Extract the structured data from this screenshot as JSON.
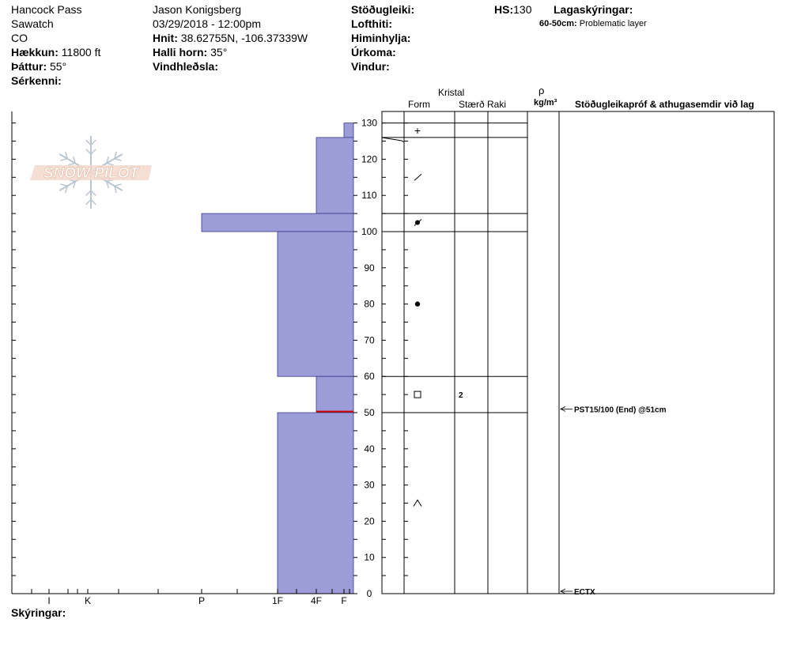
{
  "header": {
    "col1": {
      "location": "Hancock Pass",
      "range": "Sawatch",
      "state": "CO",
      "elevation_label": "Hækkun:",
      "elevation_value": "11800 ft",
      "aspect_label": "Þáttur:",
      "aspect_value": "55°",
      "features_label": "Sérkenni:"
    },
    "col2": {
      "observer": "Jason Konigsberg",
      "datetime": "03/29/2018 - 12:00pm",
      "coords_label": "Hnit:",
      "coords_value": "38.62755N, -106.37339W",
      "slope_label": "Halli horn:",
      "slope_value": "35°",
      "wind_loading_label": "Vindhleðsla:"
    },
    "col3": {
      "stability_label": "Stöðugleiki:",
      "air_temp_label": "Lofthiti:",
      "sky_label": "Himinhylja:",
      "precip_label": "Úrkoma:",
      "wind_label": "Vindur:"
    },
    "col4": {
      "hs_label": "HS:",
      "hs_value": "130",
      "legend_label": "Lagaskýringar:",
      "legend_range": "60-50cm:",
      "legend_text": "Problematic layer"
    }
  },
  "columns": {
    "crystal": "Kristal",
    "form": "Form",
    "size": "Stærð",
    "moisture": "Raki",
    "rho": "ρ",
    "density_unit": "kg/m³",
    "tests": "Stöðugleikapróf & athugasemdir við lag"
  },
  "footer": {
    "comments_label": "Skýringar:"
  },
  "chart_data": {
    "type": "bar",
    "title": "",
    "xlabel": "",
    "ylabel": "",
    "y_ticks": [
      0,
      10,
      20,
      30,
      40,
      50,
      60,
      70,
      80,
      90,
      100,
      110,
      120,
      130
    ],
    "ylim": [
      0,
      132
    ],
    "hardness_scale": [
      "I",
      "K",
      "P",
      "1F",
      "4F",
      "F"
    ],
    "layers": [
      {
        "top": 130,
        "bottom": 126,
        "hardness": "F"
      },
      {
        "top": 126,
        "bottom": 105,
        "hardness": "F-4F"
      },
      {
        "top": 105,
        "bottom": 100,
        "hardness": "P"
      },
      {
        "top": 100,
        "bottom": 60,
        "hardness": "1F"
      },
      {
        "top": 60,
        "bottom": 50,
        "hardness": "4F"
      },
      {
        "top": 50,
        "bottom": 0,
        "hardness": "1F"
      }
    ],
    "layer_boundaries": [
      130,
      126,
      105,
      100,
      60,
      50
    ],
    "problem_layer": {
      "top": 60,
      "bottom": 50,
      "color": "#cc0000"
    },
    "grain_forms": [
      {
        "depth": 128,
        "symbol": "+"
      },
      {
        "depth": 115,
        "symbol": "⁄"
      },
      {
        "depth": 102.5,
        "symbol": "●⁄"
      },
      {
        "depth": 80,
        "symbol": "●"
      },
      {
        "depth": 55,
        "symbol": "□",
        "size": "2"
      },
      {
        "depth": 25,
        "symbol": "^"
      }
    ],
    "stability_tests": [
      {
        "depth": 51,
        "text": "PST15/100 (End) @51cm"
      },
      {
        "depth": 0,
        "text": "ECTX"
      }
    ],
    "colors": {
      "fill": "#9c9cd8",
      "stroke": "#3a3a8c",
      "problem": "#cc0000"
    },
    "watermark": "SNOW PILOT"
  }
}
